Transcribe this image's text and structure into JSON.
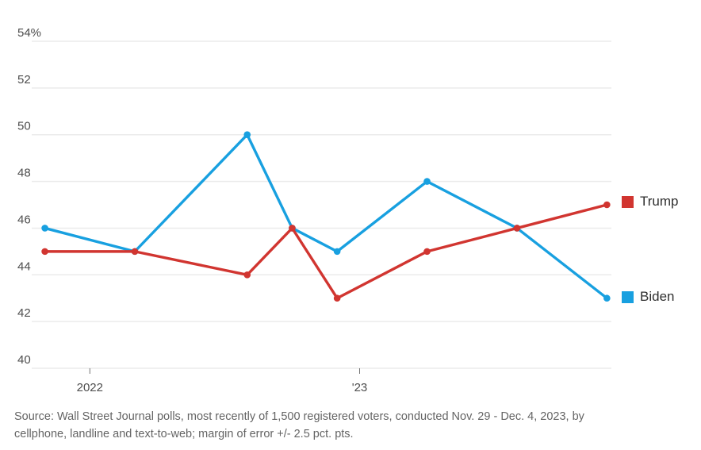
{
  "chart_data": {
    "type": "line",
    "title": "",
    "x_axis": {
      "tick_labels": [
        "2022",
        "'23"
      ],
      "tick_months_from_jan2022": [
        0,
        12
      ]
    },
    "y_axis": {
      "tick_values": [
        54,
        52,
        50,
        48,
        46,
        44,
        42,
        40
      ],
      "tick_labels": [
        "54%",
        "52",
        "50",
        "48",
        "46",
        "44",
        "42",
        "40"
      ],
      "range": [
        40,
        54
      ]
    },
    "x_months_from_jan2022": [
      -2,
      2,
      7,
      9,
      11,
      15,
      19,
      23
    ],
    "series": [
      {
        "name": "Biden",
        "color": "#18a0e0",
        "values": [
          46,
          45,
          50,
          46,
          45,
          48,
          46,
          43
        ]
      },
      {
        "name": "Trump",
        "color": "#d13530",
        "values": [
          45,
          45,
          44,
          46,
          43,
          45,
          46,
          47
        ]
      }
    ],
    "legend_position": "right",
    "grid": "horizontal"
  },
  "source": {
    "line1": "Source: Wall Street Journal polls, most recently of 1,500 registered voters, conducted Nov. 29 - Dec. 4, 2023, by",
    "line2": "cellphone, landline and text-to-web; margin of error +/- 2.5 pct. pts."
  },
  "colors": {
    "trump_red": "#d13530",
    "biden_blue": "#18a0e0",
    "gridline": "#ebebeb",
    "axis_text": "#4d4d4d",
    "tick_mark": "#757575",
    "legend_text": "#2f2f2f",
    "source_text": "#646464"
  }
}
